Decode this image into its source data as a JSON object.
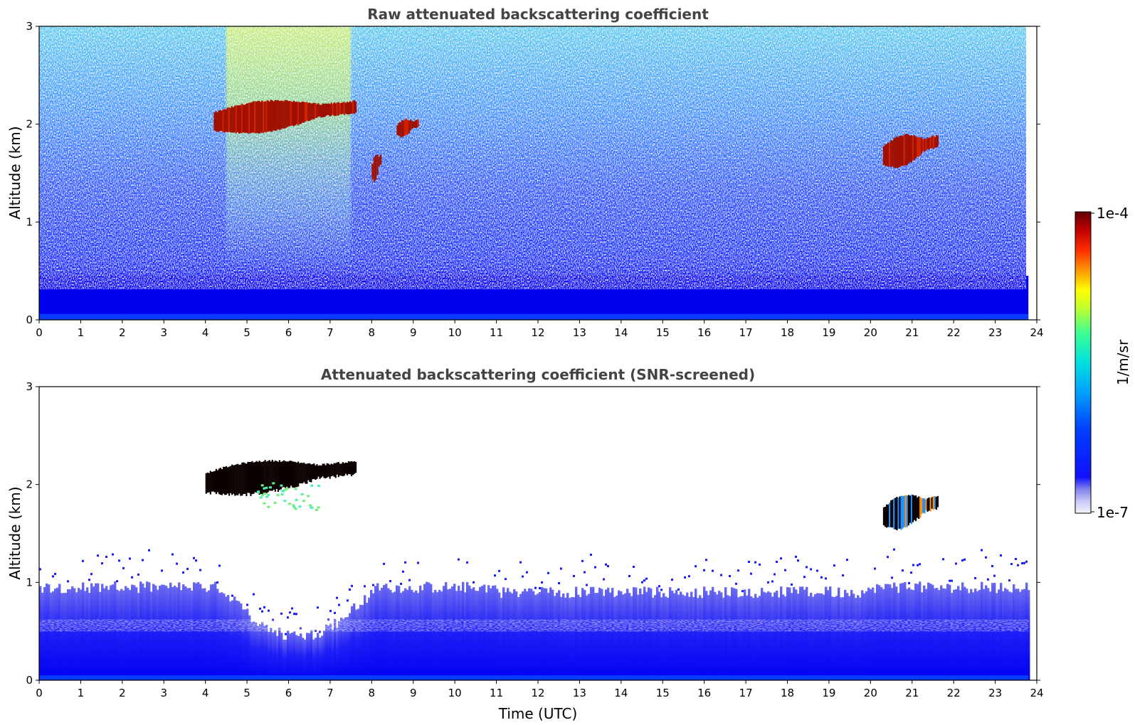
{
  "chart_data": [
    {
      "type": "heatmap",
      "title": "Raw attenuated backscattering coefficient",
      "xlabel": "",
      "ylabel": "Altitude (km)",
      "xlim": [
        0,
        24
      ],
      "ylim": [
        0,
        3
      ],
      "x_ticks": [
        "0",
        "1",
        "2",
        "3",
        "4",
        "5",
        "6",
        "7",
        "8",
        "9",
        "10",
        "11",
        "12",
        "13",
        "14",
        "15",
        "16",
        "17",
        "18",
        "19",
        "20",
        "21",
        "22",
        "23",
        "24"
      ],
      "y_ticks": [
        "0",
        "1",
        "2",
        "3"
      ],
      "features": [
        {
          "kind": "boundary_layer",
          "x": [
            0,
            23.8
          ],
          "y": [
            0,
            0.45
          ],
          "level": "low"
        },
        {
          "kind": "cloud",
          "x": [
            4.2,
            7.6
          ],
          "y": [
            1.95,
            2.25
          ],
          "level": "high"
        },
        {
          "kind": "cloud",
          "x": [
            20.3,
            21.6
          ],
          "y": [
            1.6,
            1.9
          ],
          "level": "high"
        },
        {
          "kind": "cloud",
          "x": [
            8.0,
            8.2
          ],
          "y": [
            1.45,
            1.7
          ],
          "level": "high"
        },
        {
          "kind": "cloud",
          "x": [
            8.6,
            9.1
          ],
          "y": [
            1.9,
            2.05
          ],
          "level": "high"
        },
        {
          "kind": "aerosol_plume",
          "x": [
            4.5,
            7.5
          ],
          "y": [
            0.5,
            3.0
          ],
          "level": "medium"
        }
      ]
    },
    {
      "type": "heatmap",
      "title": "Attenuated backscattering coefficient (SNR-screened)",
      "xlabel": "Time (UTC)",
      "ylabel": "Altitude (km)",
      "xlim": [
        0,
        24
      ],
      "ylim": [
        0,
        3
      ],
      "x_ticks": [
        "0",
        "1",
        "2",
        "3",
        "4",
        "5",
        "6",
        "7",
        "8",
        "9",
        "10",
        "11",
        "12",
        "13",
        "14",
        "15",
        "16",
        "17",
        "18",
        "19",
        "20",
        "21",
        "22",
        "23",
        "24"
      ],
      "y_ticks": [
        "0",
        "1",
        "2",
        "3"
      ],
      "features": [
        {
          "kind": "boundary_layer",
          "x": [
            0,
            23.8
          ],
          "y": [
            0,
            1.0
          ],
          "level": "low"
        },
        {
          "kind": "cloud",
          "x": [
            4.0,
            7.6
          ],
          "y": [
            1.95,
            2.25
          ],
          "level": "saturated"
        },
        {
          "kind": "cloud",
          "x": [
            20.3,
            21.6
          ],
          "y": [
            1.6,
            1.9
          ],
          "level": "high"
        },
        {
          "kind": "aerosol_patch",
          "x": [
            5.2,
            6.7
          ],
          "y": [
            1.75,
            2.1
          ],
          "level": "medium"
        }
      ]
    }
  ],
  "colorbar": {
    "label": "1/m/sr",
    "max_label": "1e-4",
    "min_label": "1e-7",
    "scale": "log",
    "range": [
      1e-07,
      0.0001
    ],
    "colormap": [
      "#ffffff",
      "#c8c8f5",
      "#8080ee",
      "#0000ff",
      "#0050ff",
      "#00a0ff",
      "#00e0e0",
      "#40ff90",
      "#c0ff30",
      "#ffff00",
      "#ffa000",
      "#ff3000",
      "#c00000",
      "#600000"
    ]
  },
  "colors": {
    "boundary_layer": "#0000f0",
    "noise_blue": "#2a50ff",
    "noise_cyan": "#40c8e8",
    "plume_green": "#a6e86a",
    "cloud_red": "#a01000",
    "cloud_black": "#0a0000"
  }
}
